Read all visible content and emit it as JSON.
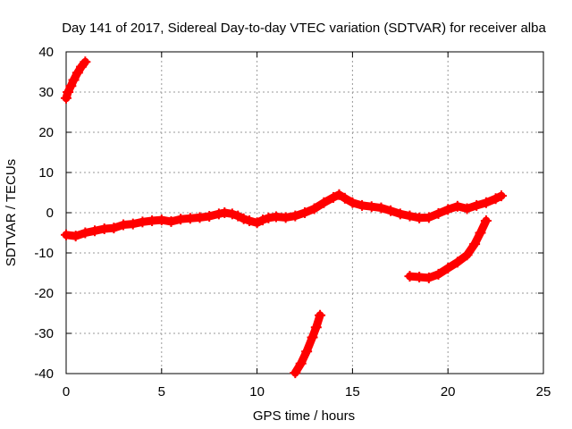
{
  "chart_data": {
    "type": "scatter",
    "title": "Day 141 of 2017, Sidereal Day-to-day VTEC variation (SDTVAR) for receiver alba",
    "xlabel": "GPS time / hours",
    "ylabel": "SDTVAR / TECUs",
    "xlim": [
      0,
      25
    ],
    "ylim": [
      -40,
      40
    ],
    "xticks": [
      0,
      5,
      10,
      15,
      20,
      25
    ],
    "yticks": [
      -40,
      -30,
      -20,
      -10,
      0,
      10,
      20,
      30,
      40
    ],
    "grid": true,
    "color": "#ff0000",
    "series": [
      {
        "name": "arc-1",
        "points": [
          [
            0.0,
            28.5
          ],
          [
            0.1,
            30.0
          ],
          [
            0.25,
            31.5
          ],
          [
            0.4,
            33.0
          ],
          [
            0.6,
            34.8
          ],
          [
            0.8,
            36.3
          ],
          [
            1.0,
            37.5
          ]
        ]
      },
      {
        "name": "arc-2",
        "points": [
          [
            0.0,
            -5.5
          ],
          [
            0.5,
            -5.8
          ],
          [
            1.0,
            -5.0
          ],
          [
            1.5,
            -4.5
          ],
          [
            2.0,
            -4.0
          ],
          [
            2.5,
            -3.8
          ],
          [
            3.0,
            -3.0
          ],
          [
            3.5,
            -2.8
          ],
          [
            4.0,
            -2.3
          ],
          [
            4.5,
            -2.0
          ],
          [
            5.0,
            -1.8
          ],
          [
            5.5,
            -2.2
          ],
          [
            6.0,
            -1.6
          ],
          [
            6.5,
            -1.4
          ],
          [
            7.0,
            -1.2
          ],
          [
            7.5,
            -0.9
          ],
          [
            8.0,
            -0.3
          ],
          [
            8.3,
            0.0
          ],
          [
            8.7,
            -0.3
          ],
          [
            9.0,
            -0.8
          ],
          [
            9.3,
            -1.5
          ],
          [
            9.6,
            -2.0
          ],
          [
            10.0,
            -2.5
          ],
          [
            10.3,
            -1.8
          ],
          [
            10.6,
            -1.3
          ],
          [
            11.0,
            -1.0
          ],
          [
            11.5,
            -1.2
          ],
          [
            12.0,
            -0.8
          ],
          [
            12.5,
            0.0
          ],
          [
            13.0,
            1.0
          ],
          [
            13.5,
            2.5
          ],
          [
            14.0,
            3.8
          ],
          [
            14.3,
            4.5
          ],
          [
            14.6,
            3.6
          ],
          [
            15.0,
            2.5
          ],
          [
            15.5,
            1.8
          ],
          [
            16.0,
            1.5
          ],
          [
            16.5,
            1.2
          ],
          [
            17.0,
            0.5
          ],
          [
            17.5,
            -0.3
          ],
          [
            18.0,
            -0.8
          ],
          [
            18.5,
            -1.3
          ],
          [
            19.0,
            -1.2
          ],
          [
            19.5,
            -0.2
          ],
          [
            20.0,
            0.8
          ],
          [
            20.5,
            1.6
          ],
          [
            21.0,
            1.0
          ],
          [
            21.5,
            1.8
          ],
          [
            22.0,
            2.5
          ],
          [
            22.5,
            3.5
          ],
          [
            22.8,
            4.2
          ]
        ]
      },
      {
        "name": "arc-3",
        "points": [
          [
            12.0,
            -39.8
          ],
          [
            12.3,
            -37.5
          ],
          [
            12.6,
            -34.5
          ],
          [
            12.9,
            -31.0
          ],
          [
            13.1,
            -28.5
          ],
          [
            13.3,
            -25.5
          ]
        ]
      },
      {
        "name": "arc-4",
        "points": [
          [
            18.0,
            -15.8
          ],
          [
            18.5,
            -16.0
          ],
          [
            19.0,
            -16.2
          ],
          [
            19.5,
            -15.3
          ],
          [
            20.0,
            -13.8
          ],
          [
            20.5,
            -12.3
          ],
          [
            21.0,
            -10.5
          ],
          [
            21.4,
            -7.8
          ],
          [
            21.7,
            -5.0
          ],
          [
            22.0,
            -2.0
          ]
        ]
      }
    ]
  }
}
